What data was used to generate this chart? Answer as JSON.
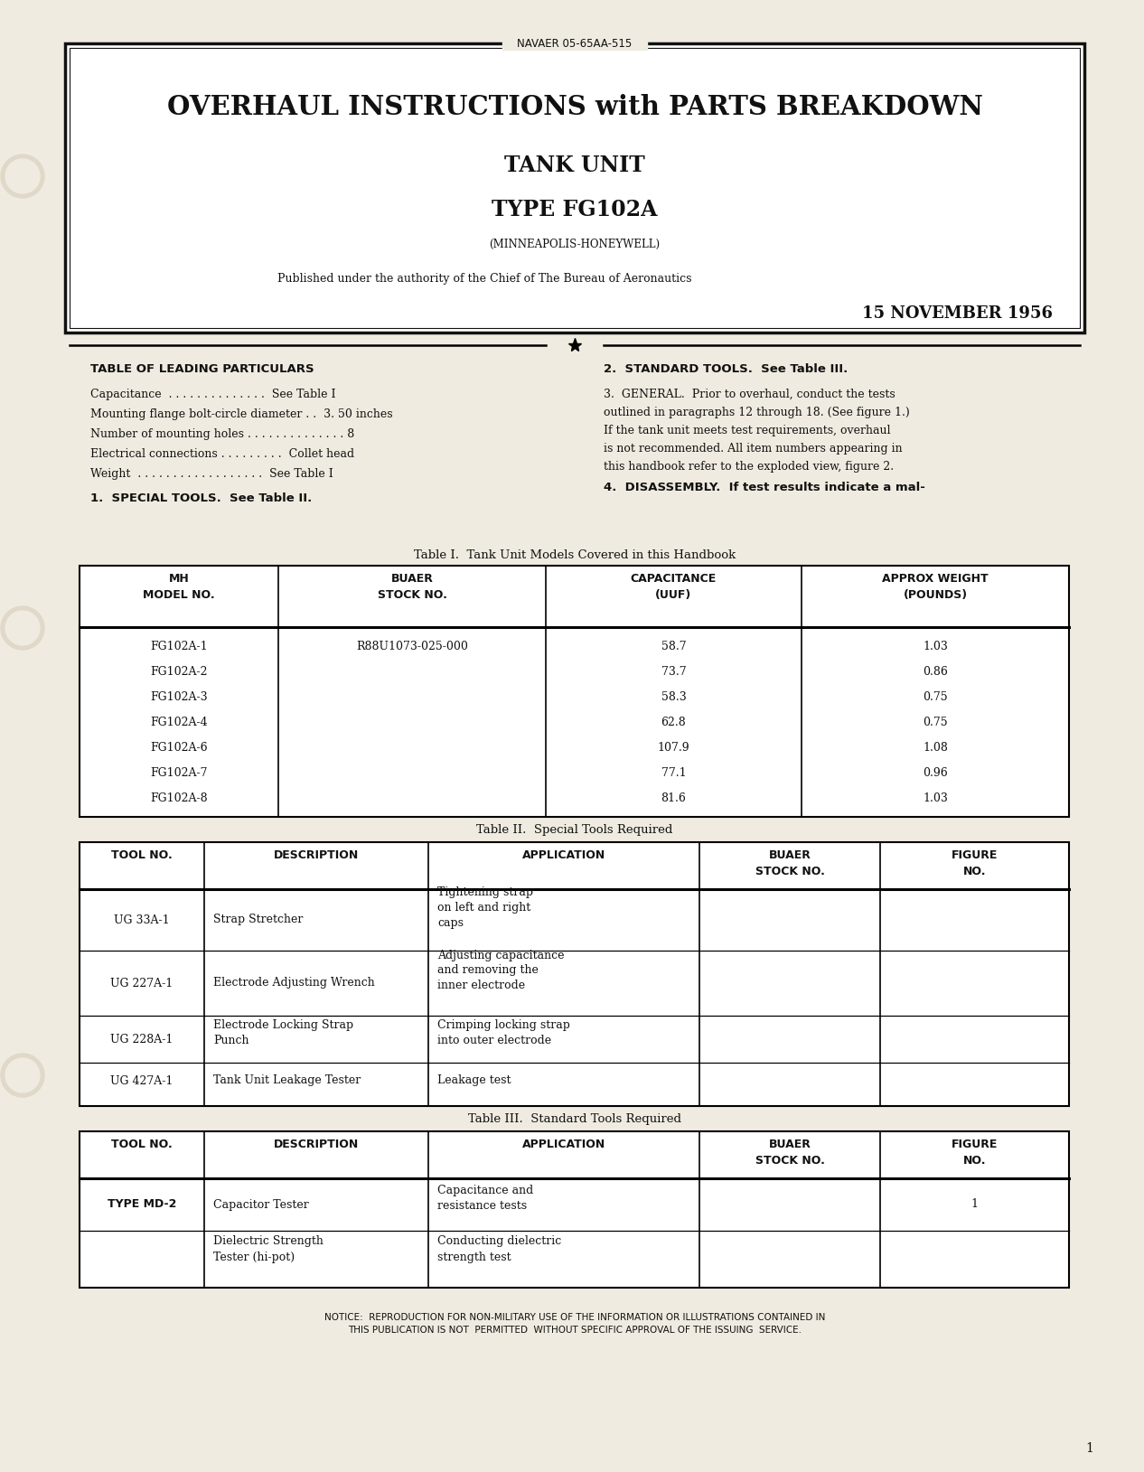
{
  "bg_color": "#f0ebe0",
  "page_bg": "#f0ebe0",
  "border_color": "#111111",
  "navaer": "NAVAER 05-65AA-515",
  "title_line1": "OVERHAUL INSTRUCTIONS with PARTS BREAKDOWN",
  "title_line2": "TANK UNIT",
  "title_line3": "TYPE FG102A",
  "title_line4": "(MINNEAPOLIS-HONEYWELL)",
  "published": "Published under the authority of the Chief of The Bureau of Aeronautics",
  "date": "15 NOVEMBER 1956",
  "left_heading": "TABLE OF LEADING PARTICULARS",
  "particulars": [
    [
      "Capacitance . . . . . . . . . . . . . .",
      "See Table I"
    ],
    [
      "Mounting flange bolt-circle diameter . . 3. 50 inches",
      ""
    ],
    [
      "Number of mounting holes . . . . . . . . . . . . . . . 8",
      ""
    ],
    [
      "Electrical connections . . . . . . . . . Collet head",
      ""
    ],
    [
      "Weight . . . . . . . . . . . . . . . . . . . . See Table I",
      ""
    ]
  ],
  "special_tools": "1.  SPECIAL TOOLS.  See Table II.",
  "standard_tools_ref": "2.  STANDARD TOOLS.  See Table III.",
  "general_lines": [
    "3.  GENERAL.  Prior to overhaul, conduct the tests",
    "outlined in paragraphs 12 through 18. (See figure 1.)",
    "If the tank unit meets test requirements, overhaul",
    "is not recommended. All item numbers appearing in",
    "this handbook refer to the exploded view, figure 2."
  ],
  "disassembly": "4.  DISASSEMBLY.  If test results indicate a mal-",
  "table1_title": "Table I.  Tank Unit Models Covered in this Handbook",
  "table1_col_headers": [
    "MH\nMODEL NO.",
    "BUAER\nSTOCK NO.",
    "CAPACITANCE\n(UUF)",
    "APPROX WEIGHT\n(POUNDS)"
  ],
  "table1_rows": [
    [
      "FG102A-1",
      "R88U1073-025-000",
      "58.7",
      "1.03"
    ],
    [
      "FG102A-2",
      "",
      "73.7",
      "0.86"
    ],
    [
      "FG102A-3",
      "",
      "58.3",
      "0.75"
    ],
    [
      "FG102A-4",
      "",
      "62.8",
      "0.75"
    ],
    [
      "FG102A-6",
      "",
      "107.9",
      "1.08"
    ],
    [
      "FG102A-7",
      "",
      "77.1",
      "0.96"
    ],
    [
      "FG102A-8",
      "",
      "81.6",
      "1.03"
    ]
  ],
  "table2_title": "Table II.  Special Tools Required",
  "table2_col_headers": [
    "TOOL NO.",
    "DESCRIPTION",
    "APPLICATION",
    "BUAER\nSTOCK NO.",
    "FIGURE\nNO."
  ],
  "table2_rows": [
    [
      "UG 33A-1",
      "Strap Stretcher",
      "Tightening strap\non left and right\ncaps",
      "",
      ""
    ],
    [
      "UG 227A-1",
      "Electrode Adjusting Wrench",
      "Adjusting capacitance\nand removing the\ninner electrode",
      "",
      ""
    ],
    [
      "UG 228A-1",
      "Electrode Locking Strap\nPunch",
      "Crimping locking strap\ninto outer electrode",
      "",
      ""
    ],
    [
      "UG 427A-1",
      "Tank Unit Leakage Tester",
      "Leakage test",
      "",
      ""
    ]
  ],
  "table3_title": "Table III.  Standard Tools Required",
  "table3_col_headers": [
    "TOOL NO.",
    "DESCRIPTION",
    "APPLICATION",
    "BUAER\nSTOCK NO.",
    "FIGURE\nNO."
  ],
  "table3_rows": [
    [
      "TYPE MD-2",
      "Capacitor Tester",
      "Capacitance and\nresistance tests",
      "",
      "1"
    ],
    [
      "",
      "Dielectric Strength\nTester (hi-pot)",
      "Conducting dielectric\nstrength test",
      "",
      ""
    ]
  ],
  "notice_line1": "NOTICE:  REPRODUCTION FOR NON-MILITARY USE OF THE INFORMATION OR ILLUSTRATIONS CONTAINED IN",
  "notice_line2": "THIS PUBLICATION IS NOT  PERMITTED  WITHOUT SPECIFIC APPROVAL OF THE ISSUING  SERVICE.",
  "page_num": "1",
  "particulars_raw": [
    "Capacitance  . . . . . . . . . . . . . .  See Table I",
    "Mounting flange bolt-circle diameter . .  3. 50 inches",
    "Number of mounting holes . . . . . . . . . . . . . . 8",
    "Electrical connections . . . . . . . . .  Collet head",
    "Weight  . . . . . . . . . . . . . . . . . .  See Table I"
  ]
}
